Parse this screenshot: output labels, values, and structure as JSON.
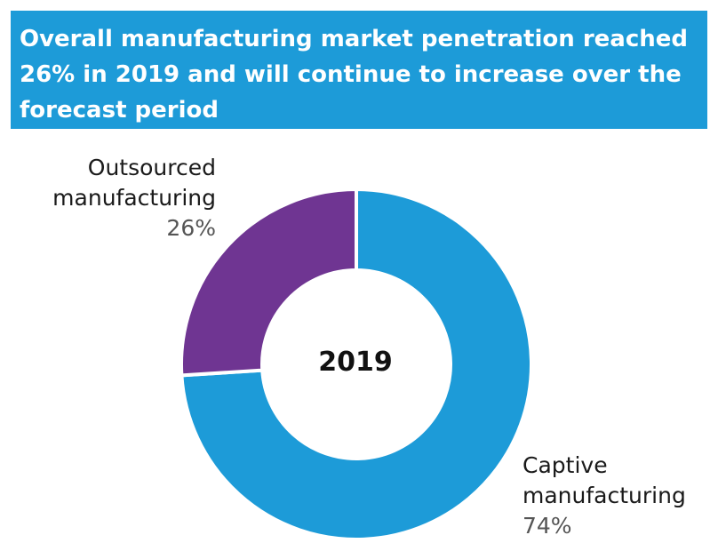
{
  "header": {
    "title": "Overall manufacturing market penetration reached 26% in 2019 and will continue to increase over the forecast period"
  },
  "colors": {
    "banner": "#1d9bd8",
    "captive": "#1d9bd8",
    "outsourced": "#6f3592"
  },
  "chart_data": {
    "type": "pie",
    "donut": true,
    "center_label": "2019",
    "slices": [
      {
        "name": "Captive manufacturing",
        "line1": "Captive",
        "line2": "manufacturing",
        "value": 74,
        "value_label": "74%"
      },
      {
        "name": "Outsourced manufacturing",
        "line1": "Outsourced",
        "line2": "manufacturing",
        "value": 26,
        "value_label": "26%"
      }
    ]
  }
}
